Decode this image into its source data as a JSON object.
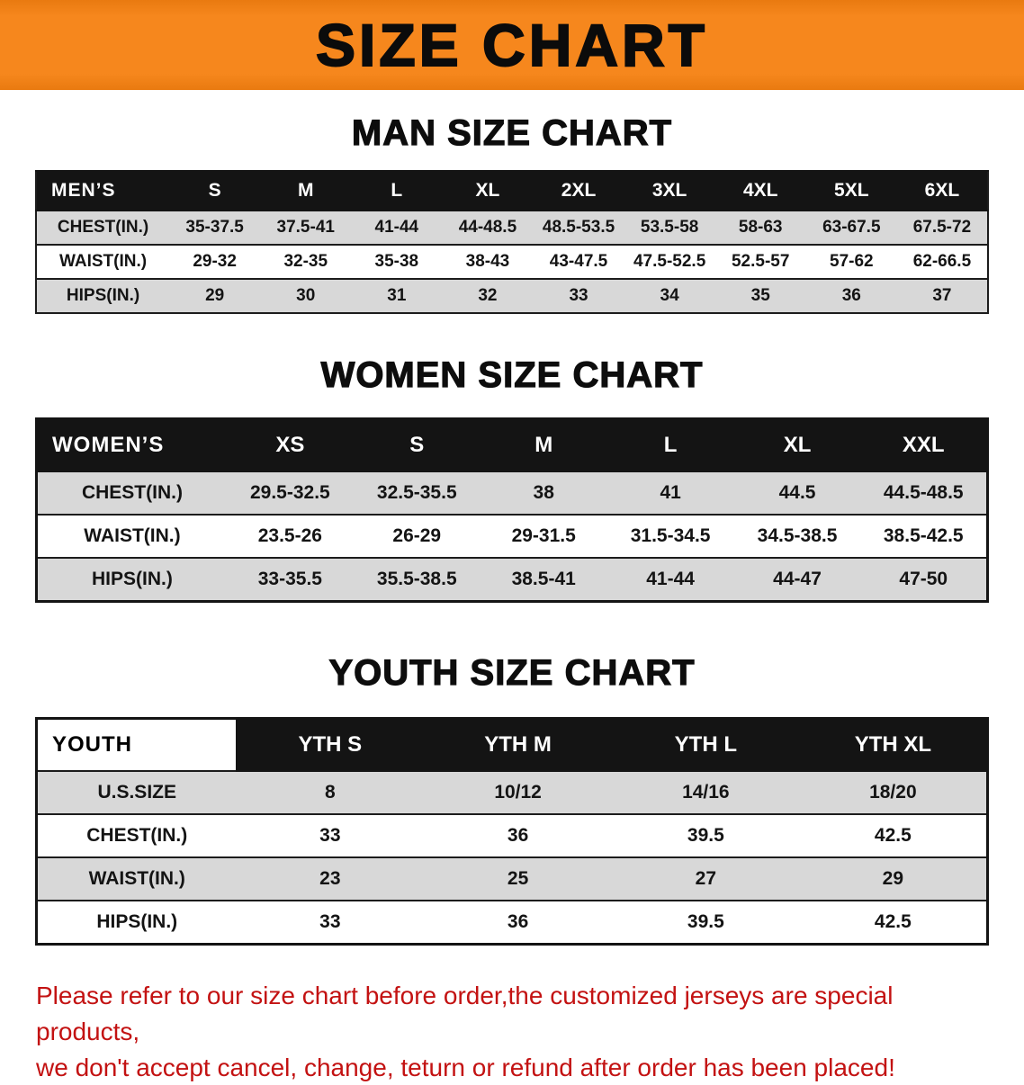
{
  "banner": {
    "title": "SIZE CHART"
  },
  "colors": {
    "banner_bg": "#f6871d",
    "table_header_bg": "#141414",
    "row_gray": "#d8d8d8",
    "note_text": "#c31212"
  },
  "men": {
    "heading": "MAN SIZE CHART",
    "label": "MEN’S",
    "header": [
      "S",
      "M",
      "L",
      "XL",
      "2XL",
      "3XL",
      "4XL",
      "5XL",
      "6XL"
    ],
    "rows": [
      {
        "label": "CHEST(IN.)",
        "values": [
          "35-37.5",
          "37.5-41",
          "41-44",
          "44-48.5",
          "48.5-53.5",
          "53.5-58",
          "58-63",
          "63-67.5",
          "67.5-72"
        ]
      },
      {
        "label": "WAIST(IN.)",
        "values": [
          "29-32",
          "32-35",
          "35-38",
          "38-43",
          "43-47.5",
          "47.5-52.5",
          "52.5-57",
          "57-62",
          "62-66.5"
        ]
      },
      {
        "label": "HIPS(IN.)",
        "values": [
          "29",
          "30",
          "31",
          "32",
          "33",
          "34",
          "35",
          "36",
          "37"
        ]
      }
    ]
  },
  "women": {
    "heading": "WOMEN SIZE CHART",
    "label": "WOMEN’S",
    "header": [
      "XS",
      "S",
      "M",
      "L",
      "XL",
      "XXL"
    ],
    "rows": [
      {
        "label": "CHEST(IN.)",
        "values": [
          "29.5-32.5",
          "32.5-35.5",
          "38",
          "41",
          "44.5",
          "44.5-48.5"
        ]
      },
      {
        "label": "WAIST(IN.)",
        "values": [
          "23.5-26",
          "26-29",
          "29-31.5",
          "31.5-34.5",
          "34.5-38.5",
          "38.5-42.5"
        ]
      },
      {
        "label": "HIPS(IN.)",
        "values": [
          "33-35.5",
          "35.5-38.5",
          "38.5-41",
          "41-44",
          "44-47",
          "47-50"
        ]
      }
    ]
  },
  "youth": {
    "heading": "YOUTH SIZE CHART",
    "label": "YOUTH",
    "header": [
      "YTH S",
      "YTH M",
      "YTH L",
      "YTH XL"
    ],
    "rows": [
      {
        "label": "U.S.SIZE",
        "values": [
          "8",
          "10/12",
          "14/16",
          "18/20"
        ]
      },
      {
        "label": "CHEST(IN.)",
        "values": [
          "33",
          "36",
          "39.5",
          "42.5"
        ]
      },
      {
        "label": "WAIST(IN.)",
        "values": [
          "23",
          "25",
          "27",
          "29"
        ]
      },
      {
        "label": "HIPS(IN.)",
        "values": [
          "33",
          "36",
          "39.5",
          "42.5"
        ]
      }
    ]
  },
  "note": {
    "line1": "Please refer to our size chart before order,the customized jerseys are special products,",
    "line2": "we don't accept cancel, change, teturn or refund after order has been placed!"
  }
}
